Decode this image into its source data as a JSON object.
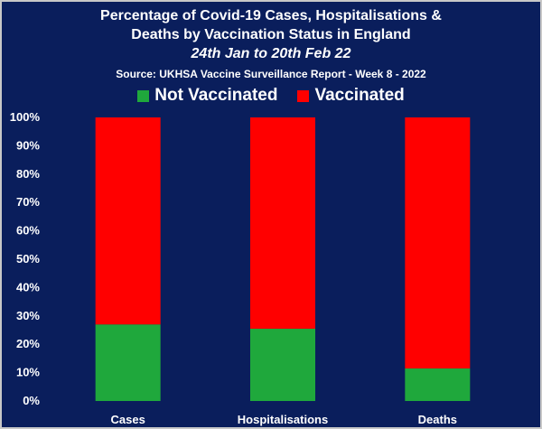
{
  "title_lines": [
    "Percentage of Covid-19 Cases, Hospitalisations &",
    "Deaths by Vaccination Status in England",
    "24th Jan to 20th Feb 22",
    "Source: UKHSA Vaccine Surveillance Report - Week 8 - 2022"
  ],
  "colors": {
    "background": "#0a1e5c",
    "not_vaccinated": "#1fa83c",
    "vaccinated": "#ff0000",
    "grid": "#3a4a80",
    "text": "#ffffff"
  },
  "chart_data": {
    "type": "bar",
    "stacked": true,
    "categories": [
      "Cases",
      "Hospitalisations",
      "Deaths"
    ],
    "series": [
      {
        "name": "Not Vaccinated",
        "values": [
          27,
          25.5,
          11.5
        ]
      },
      {
        "name": "Vaccinated",
        "values": [
          73,
          74.5,
          88.5
        ]
      }
    ],
    "ylim": [
      0,
      100
    ],
    "y_ticks": [
      "0%",
      "10%",
      "20%",
      "30%",
      "40%",
      "50%",
      "60%",
      "70%",
      "80%",
      "90%",
      "100%"
    ],
    "legend_position": "top",
    "grid": false
  }
}
